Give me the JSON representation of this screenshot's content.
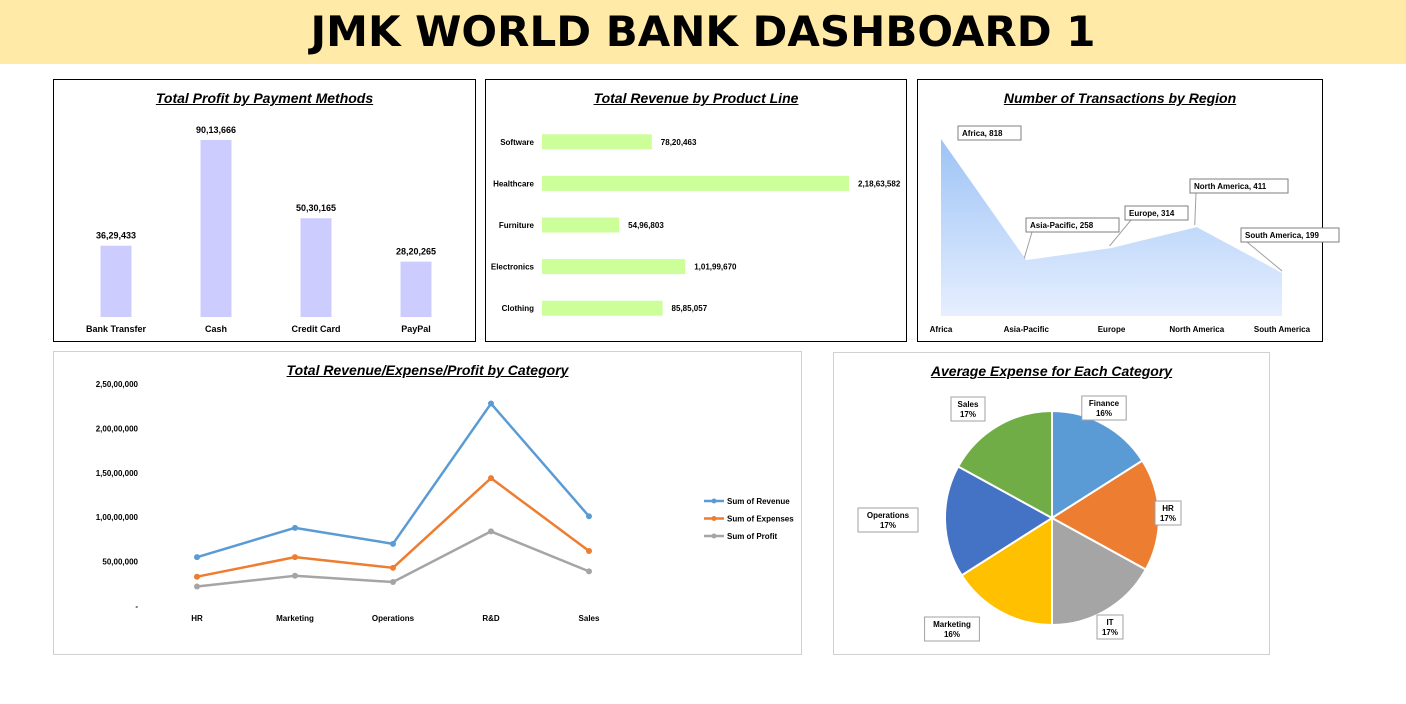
{
  "dashboard": {
    "title": "JMK WORLD BANK DASHBOARD 1"
  },
  "chart_data": [
    {
      "id": "profit_payment",
      "type": "bar",
      "title": "Total Profit by Payment Methods",
      "categories": [
        "Bank Transfer",
        "Cash",
        "Credit Card",
        "PayPal"
      ],
      "values": [
        3629433,
        9013666,
        5030165,
        2820265
      ],
      "data_labels": [
        "36,29,433",
        "90,13,666",
        "50,30,165",
        "28,20,265"
      ],
      "ylim": [
        0,
        9013666
      ],
      "grid": false,
      "color": "#ccccff"
    },
    {
      "id": "revenue_product",
      "type": "bar",
      "orientation": "horizontal",
      "title": "Total Revenue by Product Line",
      "categories": [
        "Software",
        "Healthcare",
        "Furniture",
        "Electronics",
        "Clothing"
      ],
      "values": [
        7820463,
        21863582,
        5496803,
        10199670,
        8585057
      ],
      "data_labels": [
        "78,20,463",
        "2,18,63,582",
        "54,96,803",
        "1,01,99,670",
        "85,85,057"
      ],
      "xlim": [
        0,
        21863582
      ],
      "grid": false,
      "color": "#ccff99"
    },
    {
      "id": "transactions_region",
      "type": "area",
      "title": "Number of Transactions by Region",
      "categories": [
        "Africa",
        "Asia-Pacific",
        "Europe",
        "North America",
        "South America"
      ],
      "values": [
        818,
        258,
        314,
        411,
        199
      ],
      "data_labels": [
        "Africa, 818",
        "Asia-Pacific, 258",
        "Europe, 314",
        "North America, 411",
        "South America, 199"
      ],
      "ylim": [
        0,
        818
      ],
      "grid": false,
      "color": "#9dc3f5"
    },
    {
      "id": "category_line",
      "type": "line",
      "title": "Total Revenue/Expense/Profit by Category",
      "categories": [
        "HR",
        "Marketing",
        "Operations",
        "R&D",
        "Sales"
      ],
      "yticks": [
        "-",
        "50,00,000",
        "1,00,00,000",
        "1,50,00,000",
        "2,00,00,000",
        "2,50,00,000"
      ],
      "ylim": [
        0,
        25000000
      ],
      "legend": "right",
      "grid": false,
      "series": [
        {
          "name": "Sum of Revenue",
          "color": "#5b9bd5",
          "values": [
            5500000,
            8800000,
            7000000,
            22800000,
            10100000
          ]
        },
        {
          "name": "Sum of Expenses",
          "color": "#ed7d31",
          "values": [
            3300000,
            5500000,
            4300000,
            14400000,
            6200000
          ]
        },
        {
          "name": "Sum of Profit",
          "color": "#a5a5a5",
          "values": [
            2200000,
            3400000,
            2700000,
            8400000,
            3900000
          ]
        }
      ]
    },
    {
      "id": "avg_expense",
      "type": "pie",
      "title": "Average Expense for Each Category",
      "slices": [
        {
          "label": "Finance",
          "pct_label": "16%",
          "value": 16,
          "color": "#5b9bd5"
        },
        {
          "label": "HR",
          "pct_label": "17%",
          "value": 17,
          "color": "#ed7d31"
        },
        {
          "label": "IT",
          "pct_label": "17%",
          "value": 17,
          "color": "#a5a5a5"
        },
        {
          "label": "Marketing",
          "pct_label": "16%",
          "value": 16,
          "color": "#ffc000"
        },
        {
          "label": "Operations",
          "pct_label": "17%",
          "value": 17,
          "color": "#4472c4"
        },
        {
          "label": "Sales",
          "pct_label": "17%",
          "value": 17,
          "color": "#70ad47"
        }
      ]
    }
  ]
}
